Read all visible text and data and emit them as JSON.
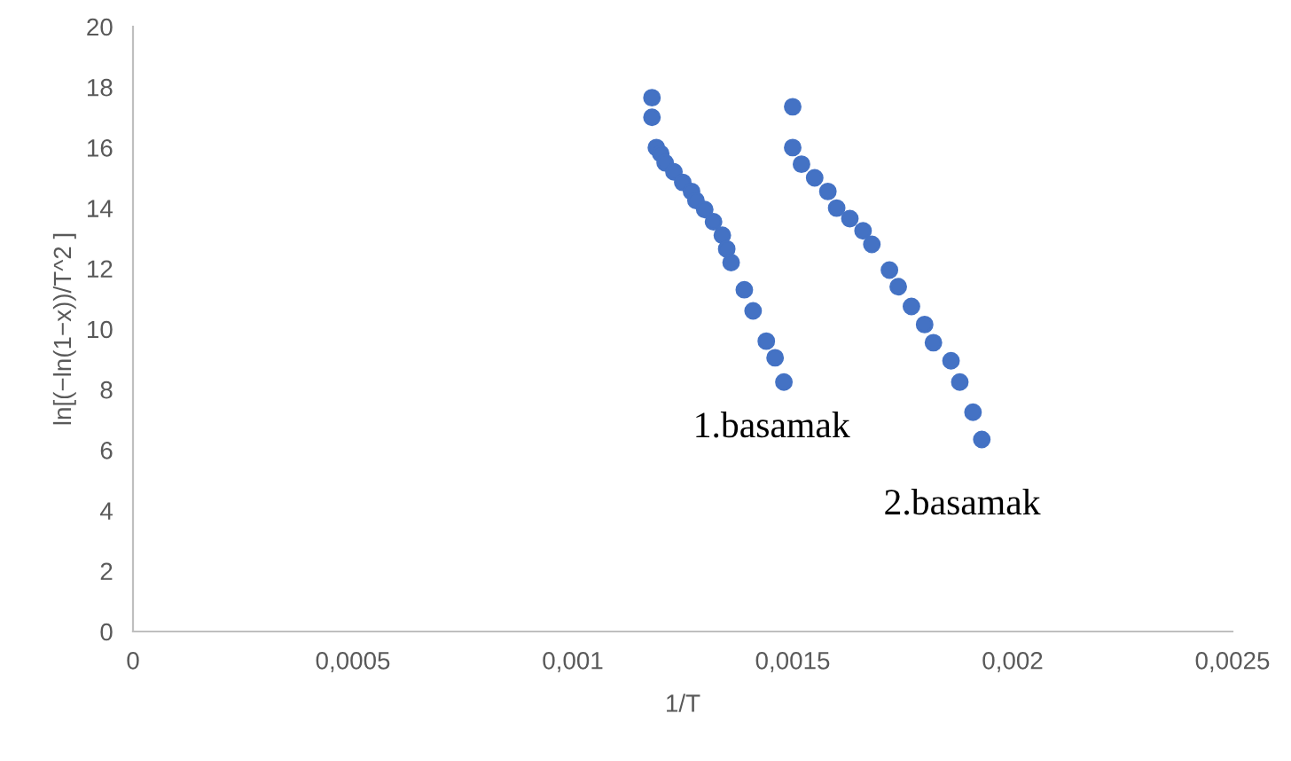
{
  "chart_data": {
    "type": "scatter",
    "xlabel": "1/T",
    "ylabel": "ln[(−ln(1−x))/T^2 ]",
    "series": [
      {
        "color": "#4472c4",
        "x": [
          0.00118,
          0.00118,
          0.00119,
          0.0012,
          0.00121,
          0.00123,
          0.00125,
          0.00127,
          0.00128,
          0.0013,
          0.00132,
          0.00134,
          0.00135,
          0.00136,
          0.00139,
          0.00141,
          0.00144,
          0.00146,
          0.00148
        ],
        "values": [
          17.65,
          17.0,
          16.0,
          15.8,
          15.5,
          15.2,
          14.85,
          14.55,
          14.25,
          13.95,
          13.55,
          13.1,
          12.65,
          12.2,
          11.3,
          10.6,
          9.6,
          9.05,
          8.25
        ]
      },
      {
        "color": "#4472c4",
        "x": [
          0.0015,
          0.0015,
          0.00152,
          0.00155,
          0.00158,
          0.0016,
          0.00163,
          0.00166,
          0.00168,
          0.00172,
          0.00174,
          0.00177,
          0.0018,
          0.00182,
          0.00186,
          0.00188,
          0.00191,
          0.00193
        ],
        "values": [
          17.35,
          16.0,
          15.45,
          15.0,
          14.55,
          14.0,
          13.65,
          13.25,
          12.8,
          11.95,
          11.4,
          10.75,
          10.15,
          9.55,
          8.95,
          8.25,
          7.25,
          6.35
        ]
      }
    ],
    "annotations": [
      "1.basamak",
      "2.basamak"
    ],
    "xlim": [
      0,
      0.0025
    ],
    "ylim": [
      0,
      20
    ],
    "xticks": [
      {
        "value": 0,
        "label": "0"
      },
      {
        "value": 0.0005,
        "label": "0,0005"
      },
      {
        "value": 0.001,
        "label": "0,001"
      },
      {
        "value": 0.0015,
        "label": "0,0015"
      },
      {
        "value": 0.002,
        "label": "0,002"
      },
      {
        "value": 0.0025,
        "label": "0,0025"
      }
    ],
    "yticks": [
      0,
      2,
      4,
      6,
      8,
      10,
      12,
      14,
      16,
      18,
      20
    ],
    "marker": "circle",
    "grid": false,
    "legend": false
  }
}
